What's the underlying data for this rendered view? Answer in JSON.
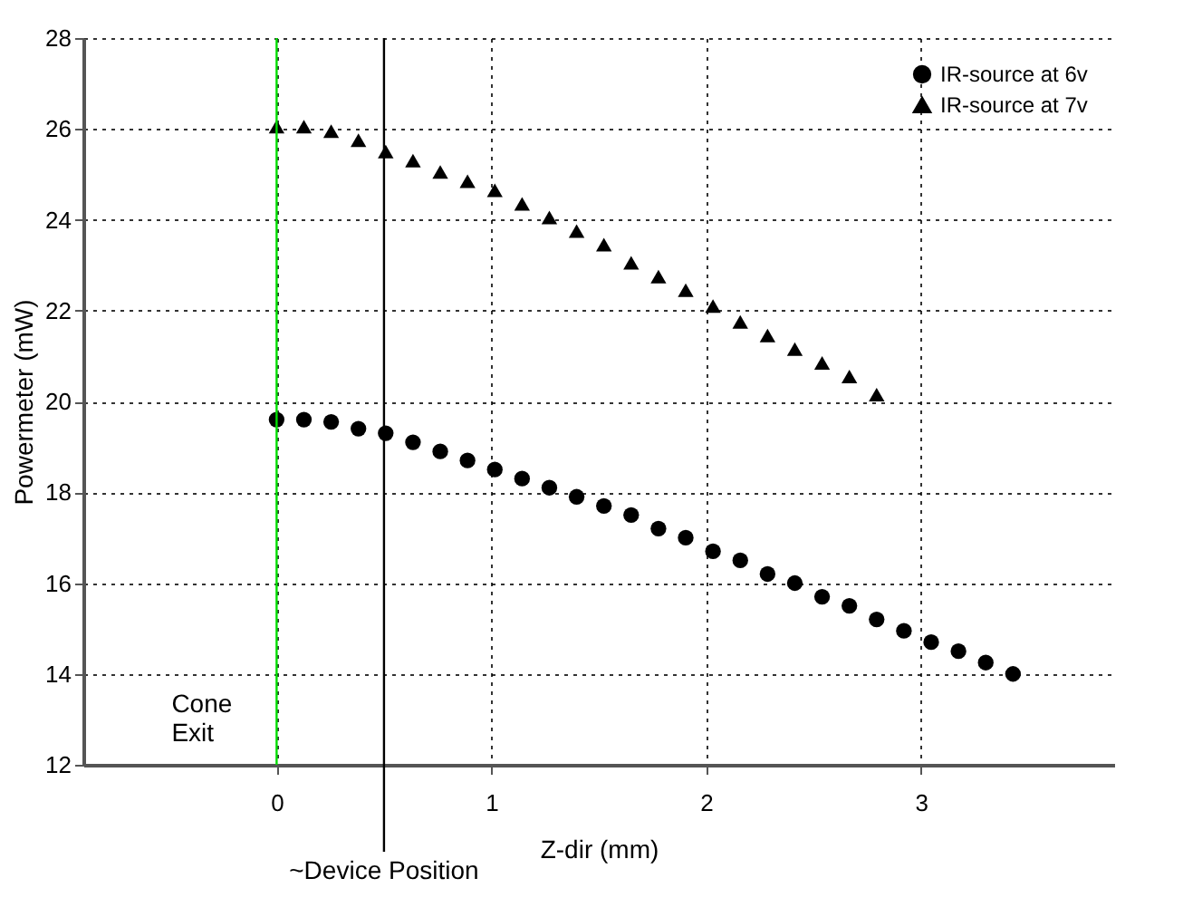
{
  "chart_data": {
    "type": "scatter",
    "xlabel": "Z-dir (mm)",
    "ylabel": "Powermeter (mW)",
    "xlim": [
      -0.9,
      3.9
    ],
    "xticks": [
      0,
      1,
      2,
      3
    ],
    "ylim": [
      12,
      28
    ],
    "yticks": [
      12,
      14,
      16,
      18,
      20,
      22,
      24,
      26,
      28
    ],
    "grid": true,
    "legend": "top right",
    "series": [
      {
        "name": "IR-source at 6v",
        "color": "#000000",
        "marker": "circle",
        "x": [
          0,
          0.127,
          0.254,
          0.381,
          0.508,
          0.635,
          0.762,
          0.889,
          1.016,
          1.143,
          1.27,
          1.397,
          1.524,
          1.651,
          1.778,
          1.905,
          2.032,
          2.159,
          2.286,
          2.413,
          2.54,
          2.667,
          2.794,
          2.921,
          3.048,
          3.175,
          3.302,
          3.429
        ],
        "values": [
          19.6,
          19.6,
          19.55,
          19.4,
          19.3,
          19.1,
          18.9,
          18.7,
          18.5,
          18.3,
          18.1,
          17.9,
          17.7,
          17.5,
          17.2,
          17.0,
          16.7,
          16.5,
          16.2,
          16.0,
          15.7,
          15.5,
          15.2,
          14.95,
          14.7,
          14.5,
          14.25,
          14.0
        ]
      },
      {
        "name": "IR-source at 7v",
        "color": "#000000",
        "marker": "triangle",
        "x": [
          0,
          0.127,
          0.254,
          0.381,
          0.508,
          0.635,
          0.762,
          0.889,
          1.016,
          1.143,
          1.27,
          1.397,
          1.524,
          1.651,
          1.778,
          1.905,
          2.032,
          2.159,
          2.286,
          2.413,
          2.54,
          2.667,
          2.794
        ],
        "values": [
          26.05,
          26.05,
          25.95,
          25.75,
          25.5,
          25.3,
          25.05,
          24.85,
          24.65,
          24.35,
          24.05,
          23.75,
          23.45,
          23.05,
          22.75,
          22.45,
          22.1,
          21.75,
          21.45,
          21.15,
          20.85,
          20.55,
          20.15
        ]
      }
    ],
    "ref_lines": [
      {
        "axis": "x",
        "value": 0,
        "label": "Cone Exit",
        "color": "#00dd00"
      },
      {
        "axis": "x",
        "value": 0.5,
        "label": "~Device Position",
        "color": "#000000"
      }
    ]
  }
}
